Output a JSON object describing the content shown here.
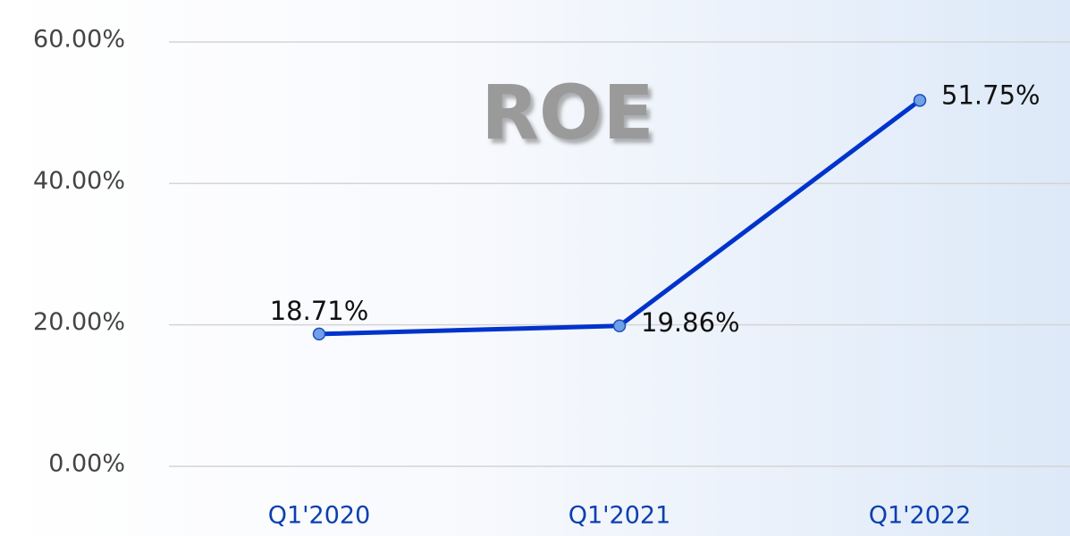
{
  "chart_data": {
    "type": "line",
    "title": "ROE",
    "categories": [
      "Q1'2020",
      "Q1'2021",
      "Q1'2022"
    ],
    "series": [
      {
        "name": "ROE",
        "color": "#0033cc",
        "values": [
          18.71,
          19.86,
          51.75
        ],
        "value_labels": [
          "18.71%",
          "19.86%",
          "51.75%"
        ]
      }
    ],
    "ylim": [
      0,
      60
    ],
    "yticks": [
      {
        "value": 0,
        "label": "0.00%"
      },
      {
        "value": 20,
        "label": "20.00%"
      },
      {
        "value": 40,
        "label": "40.00%"
      },
      {
        "value": 60,
        "label": "60.00%"
      }
    ],
    "grid": true
  }
}
